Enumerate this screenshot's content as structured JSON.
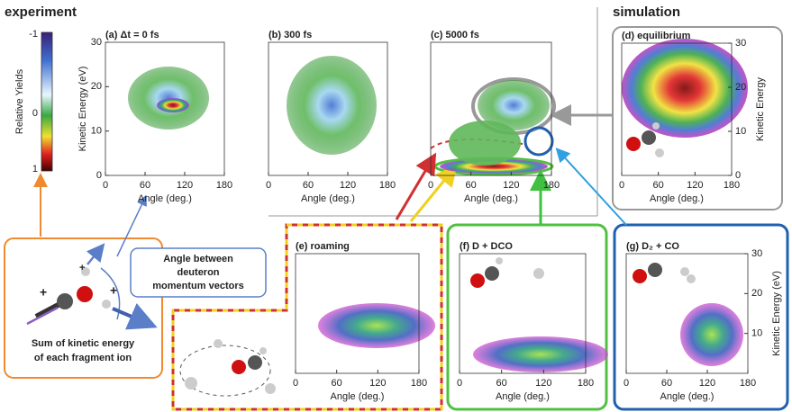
{
  "sections": {
    "experiment": "experiment",
    "simulation": "simulation"
  },
  "colorbar": {
    "label": "Relative Yields",
    "ticks": [
      "-1",
      "0",
      "1"
    ]
  },
  "panels": [
    {
      "title": "(a) Δt = 0 fs",
      "xlabel": "Angle (deg.)",
      "xticks": [
        "0",
        "60",
        "120",
        "180"
      ],
      "yticks": [
        "0",
        "10",
        "20",
        "30"
      ],
      "ylabel": "Kinetic Energy (eV)"
    },
    {
      "title": "(b) 300 fs",
      "xlabel": "Angle (deg.)",
      "xticks": [
        "0",
        "60",
        "120",
        "180"
      ]
    },
    {
      "title": "(c) 5000 fs",
      "xlabel": "Angle (deg.)",
      "xticks": [
        "0",
        "60",
        "120",
        "180"
      ]
    },
    {
      "title": "(d) equilibrium",
      "xlabel": "Angle (deg.)",
      "xticks": [
        "0",
        "60",
        "120",
        "180"
      ],
      "yticks": [
        "0",
        "10",
        "20",
        "30"
      ],
      "ylabel": "Kinetic Energy"
    },
    {
      "title": "(e) roaming",
      "xlabel": "Angle (deg.)",
      "xticks": [
        "0",
        "60",
        "120",
        "180"
      ]
    },
    {
      "title": "(f) D + DCO",
      "xlabel": "Angle (deg.)",
      "xticks": [
        "0",
        "60",
        "120",
        "180"
      ]
    },
    {
      "title": "(g) D₂ + CO",
      "xlabel": "Angle (deg.)",
      "xticks": [
        "0",
        "60",
        "120",
        "180"
      ],
      "yticks": [
        "10",
        "20",
        "30"
      ],
      "ylabel": "Kinetic Energy (eV)"
    }
  ],
  "schematic": {
    "charge": "+",
    "angle_note": [
      "Angle between",
      "deuteron",
      "momentum vectors"
    ],
    "sum_note": [
      "Sum of kinetic energy",
      "of each fragment ion"
    ]
  }
}
